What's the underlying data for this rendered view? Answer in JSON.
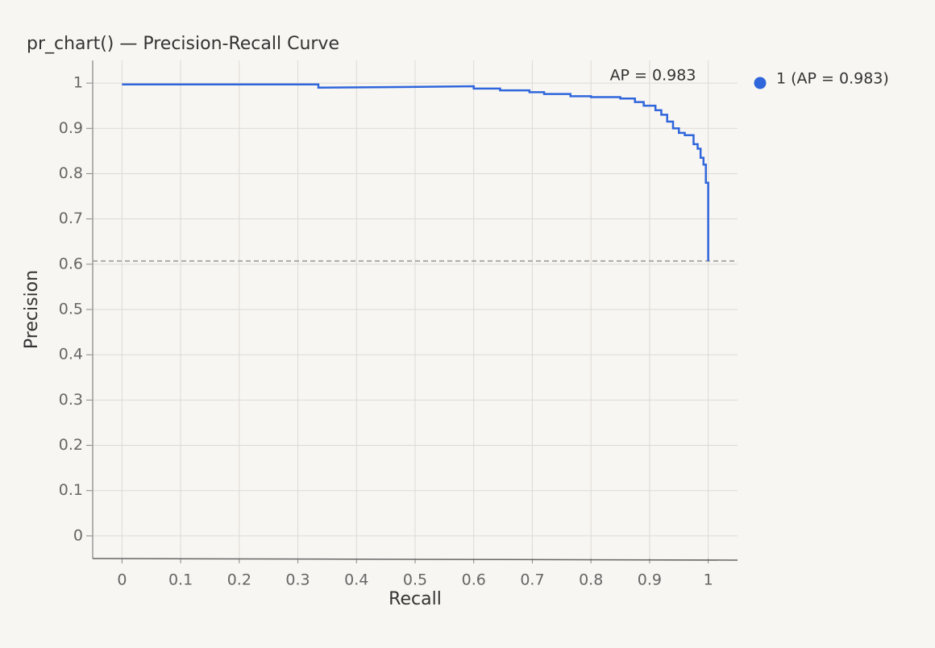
{
  "chart_data": {
    "type": "line",
    "title": "pr_chart() — Precision-Recall Curve",
    "x_label": "Recall",
    "y_label": "Precision",
    "annotation": "AP = 0.983",
    "xlim": [
      -0.05,
      1.05
    ],
    "ylim": [
      -0.05,
      1.05
    ],
    "xticks": [
      0,
      0.1,
      0.2,
      0.3,
      0.4,
      0.5,
      0.6,
      0.7,
      0.8,
      0.9,
      1
    ],
    "yticks": [
      0,
      0.1,
      0.2,
      0.3,
      0.4,
      0.5,
      0.6,
      0.7,
      0.8,
      0.9,
      1
    ],
    "grid": true,
    "legend": "right",
    "baseline": 0.607,
    "series": [
      {
        "name": "1 (AP = 0.983)",
        "color": "#2f66dc",
        "x": [
          0,
          0.335,
          0.335,
          0.45,
          0.6,
          0.6,
          0.645,
          0.645,
          0.695,
          0.695,
          0.72,
          0.72,
          0.765,
          0.765,
          0.8,
          0.8,
          0.85,
          0.85,
          0.875,
          0.875,
          0.89,
          0.89,
          0.91,
          0.91,
          0.92,
          0.92,
          0.93,
          0.93,
          0.94,
          0.94,
          0.95,
          0.95,
          0.96,
          0.96,
          0.975,
          0.975,
          0.982,
          0.982,
          0.987,
          0.987,
          0.992,
          0.992,
          0.996,
          0.996,
          1,
          1
        ],
        "values": [
          0.997,
          0.997,
          0.99,
          0.991,
          0.993,
          0.988,
          0.988,
          0.984,
          0.984,
          0.98,
          0.98,
          0.976,
          0.976,
          0.971,
          0.971,
          0.969,
          0.969,
          0.966,
          0.966,
          0.958,
          0.958,
          0.95,
          0.95,
          0.94,
          0.94,
          0.93,
          0.93,
          0.915,
          0.915,
          0.9,
          0.9,
          0.89,
          0.89,
          0.885,
          0.885,
          0.865,
          0.865,
          0.855,
          0.855,
          0.835,
          0.835,
          0.82,
          0.82,
          0.78,
          0.78,
          0.607
        ]
      }
    ]
  }
}
